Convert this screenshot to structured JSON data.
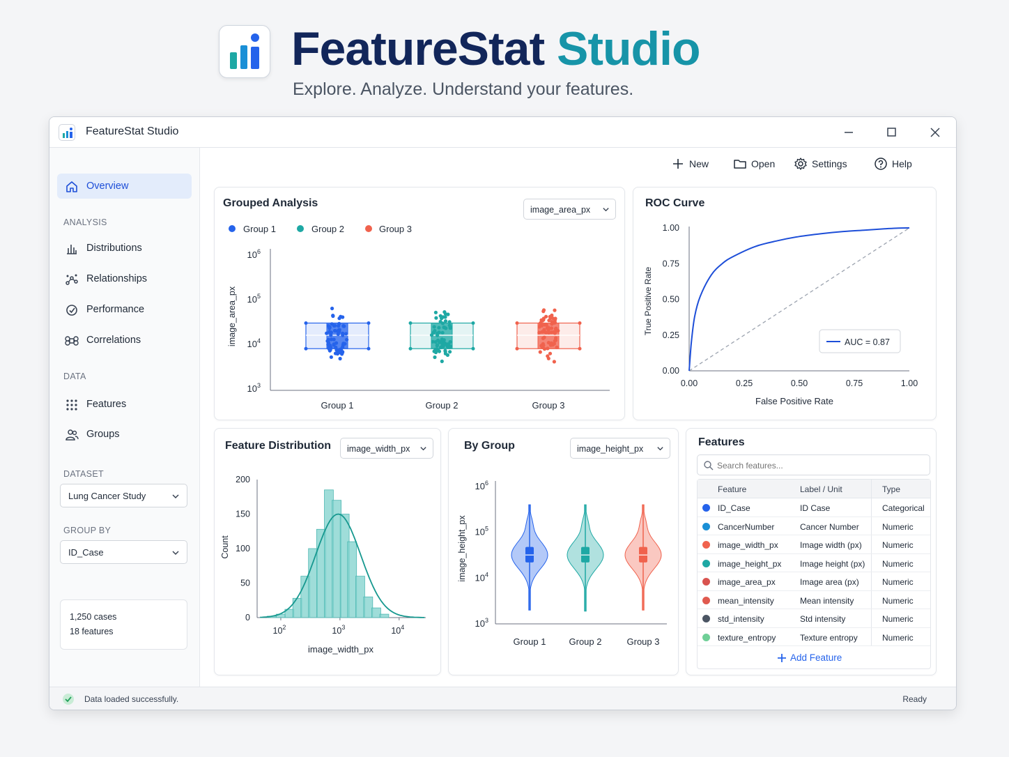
{
  "hero": {
    "title_main": "FeatureStat",
    "title_accent": "Studio",
    "subtitle": "Explore. Analyze. Understand your features."
  },
  "window": {
    "title": "FeatureStat Studio"
  },
  "toolbar": [
    {
      "label": "New",
      "icon": "plus-icon"
    },
    {
      "label": "Open",
      "icon": "folder-icon"
    },
    {
      "label": "Settings",
      "icon": "gear-icon"
    },
    {
      "label": "Help",
      "icon": "help-icon"
    }
  ],
  "sidebar": {
    "overview": "Overview",
    "analysis_label": "ANALYSIS",
    "analysis_items": [
      "Distributions",
      "Relationships",
      "Performance",
      "Correlations"
    ],
    "data_label": "DATA",
    "data_items": [
      "Features",
      "Groups"
    ],
    "dataset_label": "DATASET",
    "dataset_value": "Lung Cancer Study",
    "groupby_label": "GROUP BY",
    "groupby_value": "ID_Case",
    "cases": "1,250 cases",
    "features": "18 features"
  },
  "grouped": {
    "title": "Grouped Analysis",
    "dropdown": "image_area_px",
    "legend": [
      "Group 1",
      "Group 2",
      "Group 3"
    ],
    "ylabel": "image_area_px",
    "yticks": [
      "10",
      "10",
      "10",
      "10"
    ],
    "yexp": [
      "6",
      "5",
      "4",
      "3"
    ],
    "categories": [
      "Group 1",
      "Group 2",
      "Group 3"
    ]
  },
  "roc": {
    "title": "ROC Curve",
    "ylabel": "True Positive Rate",
    "xlabel": "False Positive Rate",
    "ticks": [
      "0.00",
      "0.25",
      "0.50",
      "0.75",
      "1.00"
    ],
    "legend": "AUC = 0.87"
  },
  "distribution": {
    "title": "Feature Distribution",
    "dropdown": "image_width_px",
    "ylabel": "Count",
    "xlabel": "image_width_px",
    "yticks": [
      "200",
      "150",
      "100",
      "50",
      "0"
    ],
    "xticks": [
      "10",
      "10",
      "10"
    ],
    "xexp": [
      "2",
      "3",
      "4"
    ]
  },
  "bygroup": {
    "title": "By Group",
    "dropdown": "image_height_px",
    "ylabel": "image_height_px",
    "yticks": [
      "10",
      "10",
      "10",
      "10"
    ],
    "yexp": [
      "6",
      "5",
      "4",
      "3"
    ],
    "categories": [
      "Group 1",
      "Group 2",
      "Group 3"
    ]
  },
  "features_panel": {
    "title": "Features",
    "search_placeholder": "Search features...",
    "headers": [
      "Feature",
      "Label / Unit",
      "Type"
    ],
    "rows": [
      {
        "feature": "ID_Case",
        "label": "ID Case",
        "type": "Categorical",
        "color": "#2563eb"
      },
      {
        "feature": "CancerNumber",
        "label": "Cancer Number",
        "type": "Numeric",
        "color": "#1a8fd6"
      },
      {
        "feature": "image_width_px",
        "label": "Image width (px)",
        "type": "Numeric",
        "color": "#f0624d"
      },
      {
        "feature": "image_height_px",
        "label": "Image height (px)",
        "type": "Numeric",
        "color": "#1ea8a4"
      },
      {
        "feature": "image_area_px",
        "label": "Image area (px)",
        "type": "Numeric",
        "color": "#d9534f"
      },
      {
        "feature": "mean_intensity",
        "label": "Mean intensity",
        "type": "Numeric",
        "color": "#e05a4f"
      },
      {
        "feature": "std_intensity",
        "label": "Std intensity",
        "type": "Numeric",
        "color": "#4b5563"
      },
      {
        "feature": "texture_entropy",
        "label": "Texture entropy",
        "type": "Numeric",
        "color": "#6fcf97"
      }
    ],
    "add_label": "Add Feature"
  },
  "status": {
    "message": "Data loaded successfully.",
    "state": "Ready"
  },
  "chart_data": [
    {
      "type": "box",
      "title": "Grouped Analysis",
      "ylabel": "image_area_px",
      "yscale": "log",
      "ylim": [
        1000,
        1000000
      ],
      "categories": [
        "Group 1",
        "Group 2",
        "Group 3"
      ],
      "series": [
        {
          "name": "Group 1",
          "color": "#2563eb",
          "q1": 8000,
          "median": 16000,
          "q3": 30000,
          "whisker_low": 3000,
          "whisker_high": 80000
        },
        {
          "name": "Group 2",
          "color": "#1ea8a4",
          "q1": 8000,
          "median": 16000,
          "q3": 30000,
          "whisker_low": 2800,
          "whisker_high": 90000
        },
        {
          "name": "Group 3",
          "color": "#f0624d",
          "q1": 8000,
          "median": 16000,
          "q3": 30000,
          "whisker_low": 3000,
          "whisker_high": 100000
        }
      ]
    },
    {
      "type": "line",
      "title": "ROC Curve",
      "xlabel": "False Positive Rate",
      "ylabel": "True Positive Rate",
      "xlim": [
        0,
        1
      ],
      "ylim": [
        0,
        1
      ],
      "series": [
        {
          "name": "AUC = 0.87",
          "color": "#1d4ed8",
          "x": [
            0,
            0.01,
            0.025,
            0.05,
            0.1,
            0.15,
            0.2,
            0.3,
            0.4,
            0.5,
            0.6,
            0.7,
            0.8,
            0.9,
            0.95,
            1.0
          ],
          "y": [
            0,
            0.2,
            0.38,
            0.52,
            0.67,
            0.75,
            0.8,
            0.87,
            0.91,
            0.94,
            0.96,
            0.975,
            0.985,
            0.995,
            0.999,
            1.0
          ]
        },
        {
          "name": "",
          "color": "#9ca3af",
          "x": [
            0,
            1
          ],
          "y": [
            0,
            1
          ]
        }
      ]
    },
    {
      "type": "bar",
      "title": "Feature Distribution",
      "xlabel": "image_width_px",
      "ylabel": "Count",
      "xscale": "log",
      "ylim": [
        0,
        200
      ],
      "bin_centers": [
        70,
        100,
        140,
        190,
        260,
        350,
        480,
        650,
        880,
        1200,
        1600,
        2200,
        3000,
        4100,
        5600
      ],
      "values": [
        2,
        5,
        12,
        28,
        60,
        100,
        128,
        185,
        170,
        150,
        110,
        60,
        30,
        14,
        5
      ]
    },
    {
      "type": "violin",
      "title": "By Group",
      "ylabel": "image_height_px",
      "yscale": "log",
      "ylim": [
        1000,
        1000000
      ],
      "categories": [
        "Group 1",
        "Group 2",
        "Group 3"
      ],
      "series": [
        {
          "name": "Group 1",
          "color": "#2563eb",
          "q1": 22000,
          "median": 32000,
          "q3": 48000,
          "min": 2000,
          "max": 400000
        },
        {
          "name": "Group 2",
          "color": "#1ea8a4",
          "q1": 22000,
          "median": 32000,
          "q3": 48000,
          "min": 1900,
          "max": 400000
        },
        {
          "name": "Group 3",
          "color": "#f0624d",
          "q1": 22000,
          "median": 32000,
          "q3": 48000,
          "min": 2000,
          "max": 400000
        }
      ]
    }
  ]
}
